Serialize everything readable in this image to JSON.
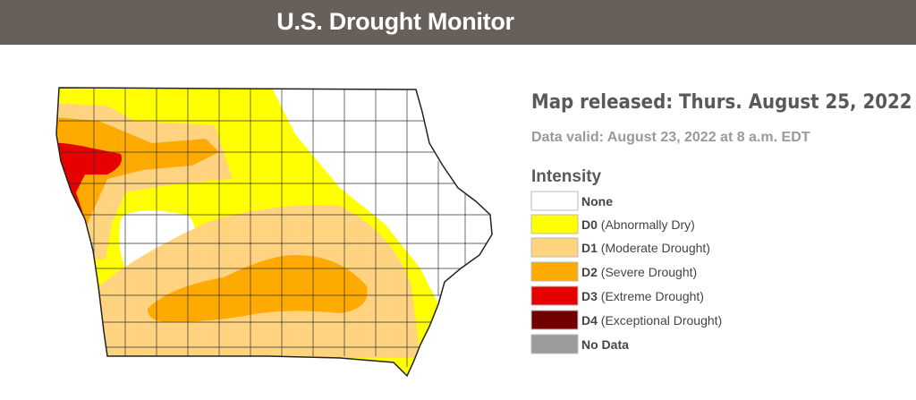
{
  "header": {
    "title": "U.S. Drought Monitor"
  },
  "map_released": "Map released: Thurs. August 25, 2022",
  "data_valid": "Data valid: August 23, 2022 at 8 a.m. EDT",
  "legend": {
    "title": "Intensity",
    "items": [
      {
        "code": "None"
      },
      {
        "code": "D0",
        "description": "(Abnormally Dry)"
      },
      {
        "code": "D1",
        "description": "(Moderate Drought)"
      },
      {
        "code": "D2",
        "description": "(Severe Drought)"
      },
      {
        "code": "D3",
        "description": "(Extreme Drought)"
      },
      {
        "code": "D4",
        "description": "(Exceptional Drought)"
      },
      {
        "code": "No Data"
      }
    ]
  }
}
